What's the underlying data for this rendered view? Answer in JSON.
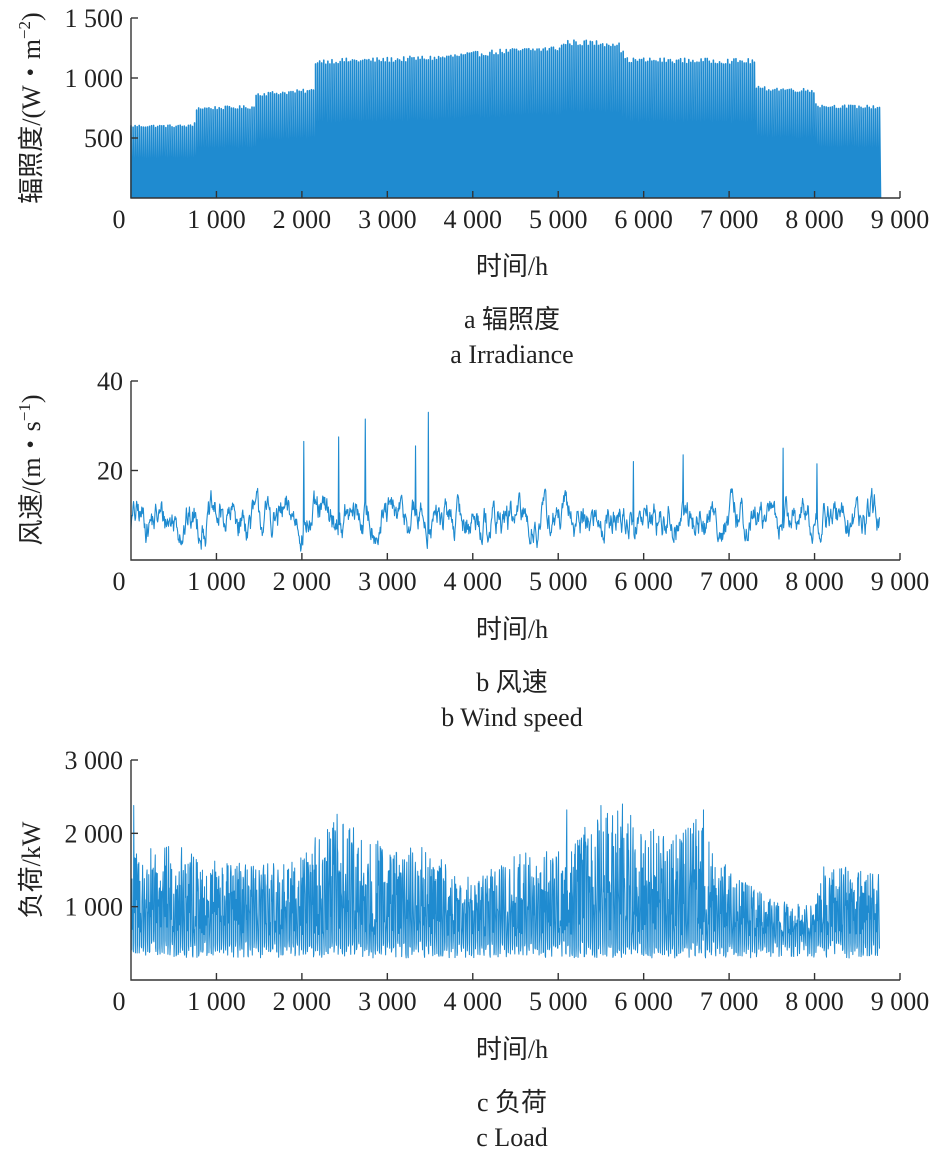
{
  "colors": {
    "series": "#1f8bd0",
    "axis": "#333333",
    "text": "#222222"
  },
  "charts": [
    {
      "ylabel": "辐照度/(W・m",
      "ylabel_sup": "−2",
      "ylabel_tail": ")",
      "xlabel": "时间/h",
      "caption_cn": "a 辐照度",
      "caption_en": "a Irradiance",
      "xticks": [
        "0",
        "1 000",
        "2 000",
        "3 000",
        "4 000",
        "5 000",
        "6 000",
        "7 000",
        "8 000",
        "9 000"
      ],
      "yticks": [
        "500",
        "1 000",
        "1 500"
      ]
    },
    {
      "ylabel": "风速/(m・s",
      "ylabel_sup": "−1",
      "ylabel_tail": ")",
      "xlabel": "时间/h",
      "caption_cn": "b 风速",
      "caption_en": "b Wind speed",
      "xticks": [
        "0",
        "1 000",
        "2 000",
        "3 000",
        "4 000",
        "5 000",
        "6 000",
        "7 000",
        "8 000",
        "9 000"
      ],
      "yticks": [
        "20",
        "40"
      ]
    },
    {
      "ylabel": "负荷/kW",
      "ylabel_sup": "",
      "ylabel_tail": "",
      "xlabel": "时间/h",
      "caption_cn": "c 负荷",
      "caption_en": "c Load",
      "xticks": [
        "0",
        "1 000",
        "2 000",
        "3 000",
        "4 000",
        "5 000",
        "6 000",
        "7 000",
        "8 000",
        "9 000"
      ],
      "yticks": [
        "1 000",
        "2 000",
        "3 000"
      ]
    }
  ],
  "chart_data": [
    {
      "type": "line",
      "xlim": [
        0,
        9000
      ],
      "ylim": [
        0,
        1500
      ],
      "series": [
        {
          "x_range": [
            0,
            8760
          ],
          "pattern": "daily",
          "min": 0,
          "peak_envelope": {
            "x": [
              0,
              740,
              760,
              1440,
              1460,
              2140,
              2160,
              2900,
              3600,
              4300,
              5000,
              5100,
              5700,
              5800,
              7300,
              7320,
              8000,
              8020,
              8760
            ],
            "y": [
              610,
              610,
              760,
              770,
              880,
              910,
              1160,
              1170,
              1190,
              1240,
              1270,
              1320,
              1310,
              1170,
              1160,
              930,
              910,
              780,
              770
            ]
          }
        }
      ]
    },
    {
      "type": "line",
      "xlim": [
        0,
        9000
      ],
      "ylim": [
        0,
        40
      ],
      "series": [
        {
          "x_range": [
            0,
            8760
          ],
          "pattern": "noisy",
          "mean": 9,
          "typical_min": 1,
          "typical_max": 16,
          "spikes": [
            {
              "x": 2020,
              "y": 26.5
            },
            {
              "x": 2430,
              "y": 27.5
            },
            {
              "x": 2740,
              "y": 31.5
            },
            {
              "x": 3330,
              "y": 25.5
            },
            {
              "x": 3480,
              "y": 33
            },
            {
              "x": 5880,
              "y": 22
            },
            {
              "x": 6460,
              "y": 23.5
            },
            {
              "x": 7630,
              "y": 25
            },
            {
              "x": 8030,
              "y": 21.5
            }
          ]
        }
      ]
    },
    {
      "type": "line",
      "xlim": [
        0,
        9000
      ],
      "ylim": [
        0,
        3000
      ],
      "series": [
        {
          "x_range": [
            0,
            8760
          ],
          "pattern": "daily-noisy",
          "typical_min": 300,
          "peak_envelope": {
            "x": [
              0,
              500,
              1000,
              1500,
              2000,
              2400,
              3000,
              3500,
              4000,
              4500,
              5000,
              5500,
              5800,
              6200,
              6600,
              7000,
              7500,
              8000,
              8100,
              8760
            ],
            "y": [
              1750,
              1850,
              1650,
              1550,
              1800,
              2200,
              1850,
              1800,
              1400,
              1700,
              1900,
              2250,
              2350,
              2000,
              2250,
              1500,
              1100,
              1000,
              1600,
              1450
            ]
          },
          "spikes": [
            {
              "x": 30,
              "y": 2380
            },
            {
              "x": 2410,
              "y": 2260
            },
            {
              "x": 5100,
              "y": 2320
            },
            {
              "x": 5500,
              "y": 2380
            },
            {
              "x": 5750,
              "y": 2400
            },
            {
              "x": 6700,
              "y": 2320
            }
          ]
        }
      ]
    }
  ]
}
